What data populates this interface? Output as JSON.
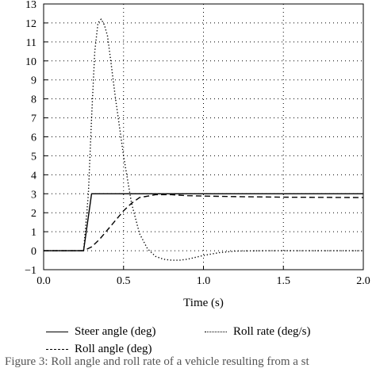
{
  "chart_data": {
    "type": "line",
    "title": "",
    "xlabel": "Time (s)",
    "ylabel": "",
    "xlim": [
      0,
      2.0
    ],
    "ylim": [
      -1,
      13
    ],
    "x_ticks": [
      "0.0",
      "0.5",
      "1.0",
      "1.5",
      "2.0"
    ],
    "y_ticks": [
      "−1",
      "0",
      "1",
      "2",
      "3",
      "4",
      "5",
      "6",
      "7",
      "8",
      "9",
      "10",
      "11",
      "12",
      "13"
    ],
    "grid": "dotted",
    "legend_position": "bottom",
    "series": [
      {
        "name": "Steer angle (deg)",
        "style": "solid",
        "x": [
          0,
          0.25,
          0.3,
          0.5,
          1.0,
          1.5,
          2.0
        ],
        "y": [
          0,
          0,
          3.0,
          3.0,
          3.0,
          3.0,
          3.0
        ]
      },
      {
        "name": "Roll angle (deg)",
        "style": "dashed",
        "x": [
          0,
          0.25,
          0.3,
          0.35,
          0.4,
          0.45,
          0.5,
          0.55,
          0.6,
          0.7,
          0.8,
          0.9,
          1.0,
          1.2,
          1.5,
          2.0
        ],
        "y": [
          0,
          0,
          0.2,
          0.6,
          1.1,
          1.6,
          2.1,
          2.5,
          2.8,
          2.95,
          2.95,
          2.9,
          2.88,
          2.85,
          2.82,
          2.8
        ]
      },
      {
        "name": "Roll rate (deg/s)",
        "style": "dotted",
        "x": [
          0,
          0.25,
          0.28,
          0.3,
          0.32,
          0.34,
          0.36,
          0.38,
          0.4,
          0.42,
          0.45,
          0.5,
          0.55,
          0.6,
          0.65,
          0.7,
          0.75,
          0.8,
          0.85,
          0.9,
          0.95,
          1.0,
          1.1,
          1.2,
          1.4,
          1.6,
          2.0
        ],
        "y": [
          0,
          0,
          3.0,
          7.0,
          10.5,
          12.0,
          12.2,
          11.9,
          11.3,
          10.0,
          8.0,
          5.0,
          2.5,
          0.9,
          0.1,
          -0.3,
          -0.45,
          -0.5,
          -0.5,
          -0.45,
          -0.35,
          -0.25,
          -0.1,
          -0.02,
          0,
          0,
          0
        ]
      }
    ]
  },
  "caption": "Figure 3: Roll angle and roll rate of a vehicle resulting from a st"
}
